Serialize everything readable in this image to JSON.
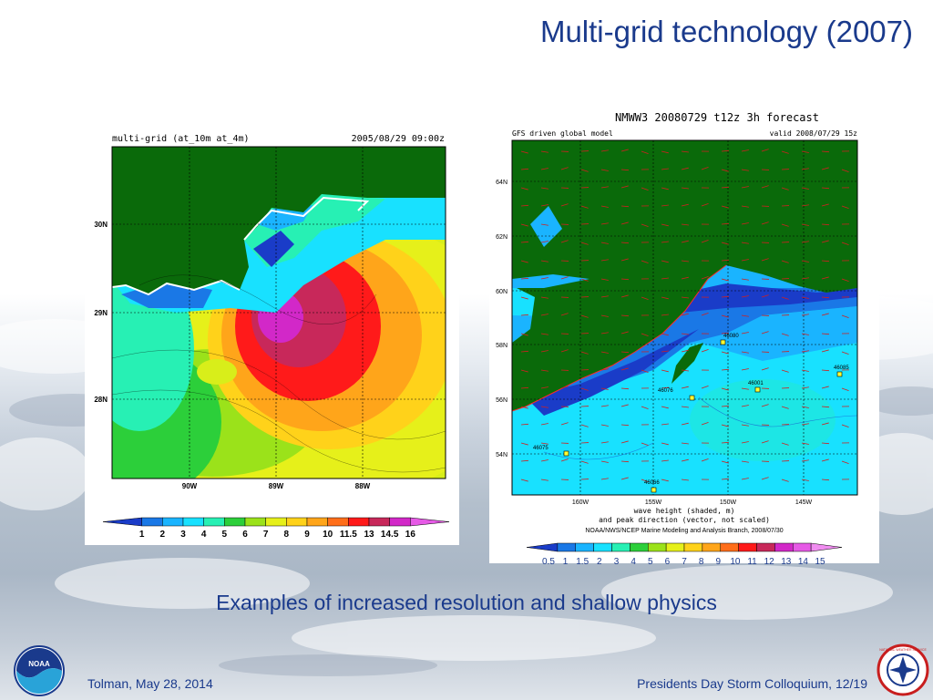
{
  "slide": {
    "title": "Multi-grid technology (2007)",
    "subtitle": "Examples of increased resolution and shallow physics",
    "footer_left": "Tolman, May 28, 2014",
    "footer_right": "Presidents Day Storm Colloquium, 12/19"
  },
  "left_map": {
    "header_left": "multi-grid (at_10m at_4m)",
    "header_right": "2005/08/29 09:00z",
    "lat_labels": [
      "30N",
      "29N",
      "28N"
    ],
    "lon_labels": [
      "90W",
      "89W",
      "88W"
    ],
    "colorbar_labels": [
      "1",
      "2",
      "3",
      "4",
      "5",
      "6",
      "7",
      "8",
      "9",
      "10",
      "11.5",
      "13",
      "14.5",
      "16"
    ],
    "colorbar_colors": [
      "#1a3cc8",
      "#1a78e6",
      "#1ab4ff",
      "#18e1ff",
      "#27f0b4",
      "#2ccf3a",
      "#9be21a",
      "#e6f01a",
      "#ffd21a",
      "#ffa51a",
      "#ff6e1a",
      "#ff1a1a",
      "#c8285a",
      "#d228c8",
      "#e65ae6"
    ]
  },
  "right_map": {
    "header_top": "NMWW3 20080729 t12z      3h forecast",
    "header_left": "GFS driven global model",
    "header_right": "valid 2008/07/29 15z",
    "lat_labels": [
      "64N",
      "62N",
      "60N",
      "58N",
      "56N",
      "54N"
    ],
    "lon_labels": [
      "160W",
      "155W",
      "150W",
      "145W"
    ],
    "caption1": "wave height (shaded, m)",
    "caption2": "and peak direction (vector, not scaled)",
    "caption3": "NOAA/NWS/NCEP Marine Modeling and Analysis Branch, 2008/07/30",
    "buoy_labels": [
      "46080",
      "46085",
      "46001",
      "46076",
      "46075",
      "46066"
    ],
    "colorbar_labels": [
      "0.5",
      "1",
      "1.5",
      "2",
      "3",
      "4",
      "5",
      "6",
      "7",
      "8",
      "9",
      "10",
      "11",
      "12",
      "13",
      "14",
      "15"
    ],
    "colorbar_colors": [
      "#1a3cc8",
      "#1a78e6",
      "#1ab4ff",
      "#18e1ff",
      "#27f0b4",
      "#2ccf3a",
      "#9be21a",
      "#e6f01a",
      "#ffd21a",
      "#ffa51a",
      "#ff6e1a",
      "#ff1a1a",
      "#c8285a",
      "#d228c8",
      "#e65ae6",
      "#f08cf0"
    ]
  },
  "logos": {
    "noaa": "NOAA",
    "nws": "NATIONAL WEATHER SERVICE"
  }
}
